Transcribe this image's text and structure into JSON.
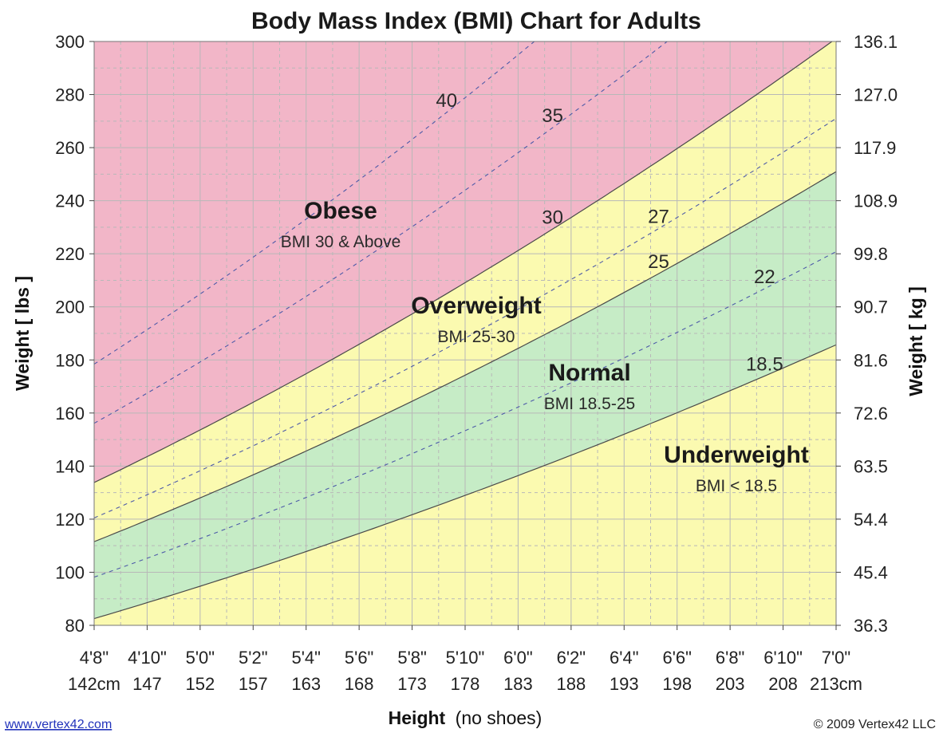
{
  "chart_data": {
    "type": "area",
    "title": "Body Mass Index (BMI) Chart for Adults",
    "xlabel": "Height",
    "xlabel_note": "(no shoes)",
    "ylabel_left": "Weight [ lbs ]",
    "ylabel_right": "Weight [ kg ]",
    "x_range_inches": [
      56,
      84
    ],
    "ylim": [
      80,
      300
    ],
    "y_ticks": [
      80,
      100,
      120,
      140,
      160,
      180,
      200,
      220,
      240,
      260,
      280,
      300
    ],
    "y_right_ticks": [
      "36.3",
      "45.4",
      "54.4",
      "63.5",
      "72.6",
      "81.6",
      "90.7",
      "99.8",
      "108.9",
      "117.9",
      "127.0",
      "136.1"
    ],
    "x_ticks_inches": [
      56,
      58,
      60,
      62,
      64,
      66,
      68,
      70,
      72,
      74,
      76,
      78,
      80,
      82,
      84
    ],
    "x_tick_labels_ft": [
      "4'8\"",
      "4'10\"",
      "5'0\"",
      "5'2\"",
      "5'4\"",
      "5'6\"",
      "5'8\"",
      "5'10\"",
      "6'0\"",
      "6'2\"",
      "6'4\"",
      "6'6\"",
      "6'8\"",
      "6'10\"",
      "7'0\""
    ],
    "x_tick_labels_cm": [
      "142cm",
      "147",
      "152",
      "157",
      "163",
      "168",
      "173",
      "178",
      "183",
      "188",
      "193",
      "198",
      "203",
      "208",
      "213cm"
    ],
    "grid": true,
    "boundary_bmis": [
      18.5,
      25,
      30
    ],
    "dashed_bmis": [
      22,
      27,
      35,
      40
    ],
    "curve_labels": [
      {
        "bmi": 40,
        "text": "40",
        "at_inches": 69.3
      },
      {
        "bmi": 35,
        "text": "35",
        "at_inches": 73.3
      },
      {
        "bmi": 30,
        "text": "30",
        "at_inches": 73.3
      },
      {
        "bmi": 27,
        "text": "27",
        "at_inches": 77.3
      },
      {
        "bmi": 25,
        "text": "25",
        "at_inches": 77.3
      },
      {
        "bmi": 22,
        "text": "22",
        "at_inches": 81.3
      },
      {
        "bmi": 18.5,
        "text": "18.5",
        "at_inches": 81.3
      }
    ],
    "zones": [
      {
        "name": "Obese",
        "range": "BMI 30 & Above",
        "color": "#f2b6c8"
      },
      {
        "name": "Overweight",
        "range": "BMI 25-30",
        "color": "#fbfab0"
      },
      {
        "name": "Normal",
        "range": "BMI 18.5-25",
        "color": "#c6ecc6"
      },
      {
        "name": "Underweight",
        "range": "BMI < 18.5",
        "color": "#fbfab0"
      }
    ],
    "colors": {
      "obese": "#f2b6c8",
      "overweight": "#fbfab0",
      "normal": "#c6ecc6",
      "underweight": "#fbfab0",
      "grid": "#b8b8b8",
      "curve": "#4a4a4a",
      "dashed": "#4d5aa8"
    }
  },
  "footer": {
    "website": "www.vertex42.com",
    "copyright": "© 2009 Vertex42 LLC"
  }
}
